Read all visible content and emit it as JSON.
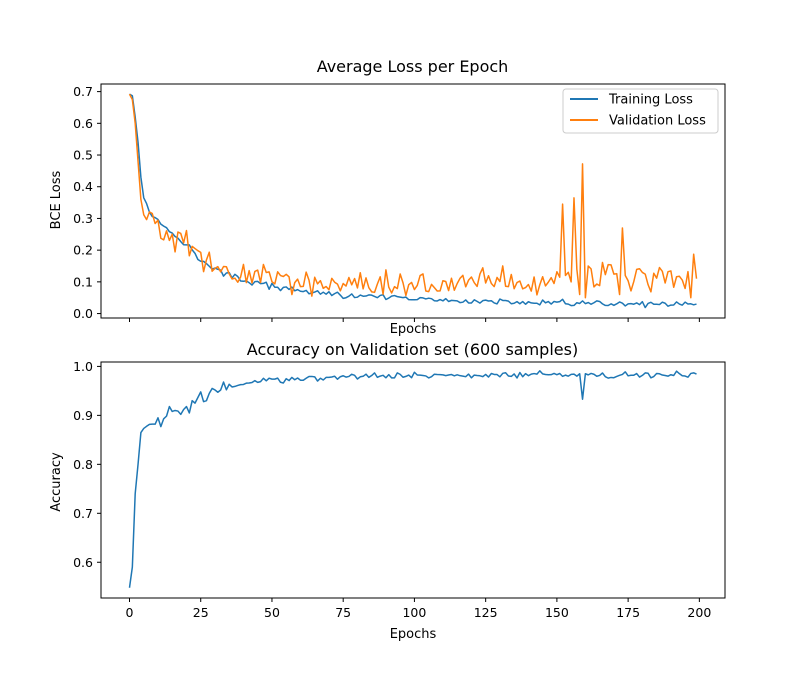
{
  "chart_data": [
    {
      "type": "line",
      "title": "Average Loss per Epoch",
      "xlabel": "Epochs",
      "ylabel": "BCE Loss",
      "xlim": [
        -10,
        209
      ],
      "ylim": [
        -0.014,
        0.724
      ],
      "xticks": [
        0,
        25,
        50,
        75,
        100,
        125,
        150,
        175,
        200
      ],
      "xtick_labels_visible": false,
      "yticks": [
        0.0,
        0.1,
        0.2,
        0.3,
        0.4,
        0.5,
        0.6,
        0.7
      ],
      "ytick_labels": [
        "0.0",
        "0.1",
        "0.2",
        "0.3",
        "0.4",
        "0.5",
        "0.6",
        "0.7"
      ],
      "legend_position": "top-right",
      "grid": false,
      "series": [
        {
          "name": "Training Loss",
          "color": "#1f77b4",
          "anchors_epoch_value": [
            [
              0,
              0.692
            ],
            [
              1,
              0.687
            ],
            [
              2,
              0.62
            ],
            [
              3,
              0.54
            ],
            [
              4,
              0.43
            ],
            [
              5,
              0.37
            ],
            [
              6,
              0.35
            ],
            [
              7,
              0.33
            ],
            [
              8,
              0.31
            ],
            [
              9,
              0.295
            ],
            [
              10,
              0.29
            ],
            [
              12,
              0.28
            ],
            [
              14,
              0.26
            ],
            [
              16,
              0.245
            ],
            [
              18,
              0.235
            ],
            [
              20,
              0.22
            ],
            [
              22,
              0.2
            ],
            [
              24,
              0.175
            ],
            [
              26,
              0.16
            ],
            [
              28,
              0.148
            ],
            [
              30,
              0.14
            ],
            [
              35,
              0.12
            ],
            [
              40,
              0.105
            ],
            [
              45,
              0.095
            ],
            [
              50,
              0.085
            ],
            [
              55,
              0.078
            ],
            [
              60,
              0.072
            ],
            [
              65,
              0.068
            ],
            [
              70,
              0.063
            ],
            [
              75,
              0.058
            ],
            [
              80,
              0.055
            ],
            [
              90,
              0.05
            ],
            [
              100,
              0.046
            ],
            [
              110,
              0.042
            ],
            [
              120,
              0.039
            ],
            [
              130,
              0.036
            ],
            [
              140,
              0.034
            ],
            [
              150,
              0.032
            ],
            [
              160,
              0.03
            ],
            [
              170,
              0.029
            ],
            [
              180,
              0.028
            ],
            [
              190,
              0.027
            ],
            [
              199,
              0.025
            ]
          ],
          "noise": 0.006,
          "overrides_epoch_value": [
            [
              74,
              0.058
            ],
            [
              75,
              0.048
            ],
            [
              78,
              0.062
            ],
            [
              152,
              0.045
            ],
            [
              159,
              0.04
            ]
          ]
        },
        {
          "name": "Validation Loss",
          "color": "#ff7f0e",
          "anchors_epoch_value": [
            [
              0,
              0.692
            ],
            [
              1,
              0.675
            ],
            [
              2,
              0.6
            ],
            [
              3,
              0.48
            ],
            [
              4,
              0.36
            ],
            [
              5,
              0.325
            ],
            [
              6,
              0.318
            ],
            [
              8,
              0.3
            ],
            [
              10,
              0.272
            ],
            [
              12,
              0.255
            ],
            [
              14,
              0.26
            ],
            [
              16,
              0.235
            ],
            [
              18,
              0.228
            ],
            [
              20,
              0.21
            ],
            [
              22,
              0.19
            ],
            [
              24,
              0.18
            ],
            [
              26,
              0.17
            ],
            [
              28,
              0.165
            ],
            [
              30,
              0.155
            ],
            [
              35,
              0.135
            ],
            [
              40,
              0.125
            ],
            [
              45,
              0.115
            ],
            [
              50,
              0.105
            ],
            [
              55,
              0.1
            ],
            [
              60,
              0.098
            ],
            [
              70,
              0.095
            ],
            [
              80,
              0.095
            ],
            [
              90,
              0.095
            ],
            [
              100,
              0.095
            ],
            [
              120,
              0.097
            ],
            [
              140,
              0.1
            ],
            [
              150,
              0.105
            ],
            [
              160,
              0.11
            ],
            [
              170,
              0.115
            ],
            [
              180,
              0.115
            ],
            [
              190,
              0.118
            ],
            [
              199,
              0.12
            ]
          ],
          "noise": 0.03,
          "overrides_epoch_value": [
            [
              152,
              0.345
            ],
            [
              153,
              0.12
            ],
            [
              154,
              0.13
            ],
            [
              155,
              0.1
            ],
            [
              156,
              0.365
            ],
            [
              157,
              0.14
            ],
            [
              158,
              0.06
            ],
            [
              159,
              0.472
            ],
            [
              160,
              0.05
            ],
            [
              161,
              0.15
            ],
            [
              172,
              0.06
            ],
            [
              173,
              0.27
            ],
            [
              174,
              0.12
            ],
            [
              197,
              0.05
            ],
            [
              198,
              0.187
            ],
            [
              199,
              0.11
            ]
          ]
        }
      ]
    },
    {
      "type": "line",
      "title": "Accuracy on Validation set (600 samples)",
      "xlabel": "Epochs",
      "ylabel": "Accuracy",
      "xlim": [
        -10,
        209
      ],
      "ylim": [
        0.527,
        1.009
      ],
      "xticks": [
        0,
        25,
        50,
        75,
        100,
        125,
        150,
        175,
        200
      ],
      "xtick_labels": [
        "0",
        "25",
        "50",
        "75",
        "100",
        "125",
        "150",
        "175",
        "200"
      ],
      "yticks": [
        0.6,
        0.7,
        0.8,
        0.9,
        1.0
      ],
      "ytick_labels": [
        "0.6",
        "0.7",
        "0.8",
        "0.9",
        "1.0"
      ],
      "grid": false,
      "series": [
        {
          "color": "#1f77b4",
          "anchors_epoch_value": [
            [
              0,
              0.548
            ],
            [
              1,
              0.59
            ],
            [
              2,
              0.74
            ],
            [
              3,
              0.8
            ],
            [
              4,
              0.865
            ],
            [
              5,
              0.875
            ],
            [
              6,
              0.878
            ],
            [
              7,
              0.88
            ],
            [
              8,
              0.882
            ],
            [
              10,
              0.888
            ],
            [
              12,
              0.895
            ],
            [
              14,
              0.905
            ],
            [
              16,
              0.91
            ],
            [
              18,
              0.915
            ],
            [
              20,
              0.92
            ],
            [
              22,
              0.928
            ],
            [
              25,
              0.935
            ],
            [
              28,
              0.94
            ],
            [
              30,
              0.945
            ],
            [
              33,
              0.955
            ],
            [
              36,
              0.962
            ],
            [
              40,
              0.966
            ],
            [
              45,
              0.968
            ],
            [
              50,
              0.972
            ],
            [
              60,
              0.975
            ],
            [
              70,
              0.977
            ],
            [
              80,
              0.979
            ],
            [
              90,
              0.98
            ],
            [
              100,
              0.981
            ],
            [
              120,
              0.982
            ],
            [
              140,
              0.983
            ],
            [
              160,
              0.982
            ],
            [
              180,
              0.982
            ],
            [
              199,
              0.984
            ]
          ],
          "noise": 0.004,
          "overrides_epoch_value": [
            [
              9,
              0.882
            ],
            [
              10,
              0.895
            ],
            [
              11,
              0.877
            ],
            [
              12,
              0.893
            ],
            [
              14,
              0.918
            ],
            [
              15,
              0.908
            ],
            [
              16,
              0.91
            ],
            [
              18,
              0.902
            ],
            [
              20,
              0.918
            ],
            [
              21,
              0.905
            ],
            [
              22,
              0.93
            ],
            [
              23,
              0.925
            ],
            [
              25,
              0.948
            ],
            [
              26,
              0.928
            ],
            [
              27,
              0.93
            ],
            [
              28,
              0.945
            ],
            [
              29,
              0.955
            ],
            [
              30,
              0.952
            ],
            [
              33,
              0.968
            ],
            [
              36,
              0.958
            ],
            [
              144,
              0.991
            ],
            [
              150,
              0.983
            ],
            [
              158,
              0.985
            ],
            [
              159,
              0.933
            ],
            [
              160,
              0.985
            ]
          ]
        }
      ]
    }
  ]
}
